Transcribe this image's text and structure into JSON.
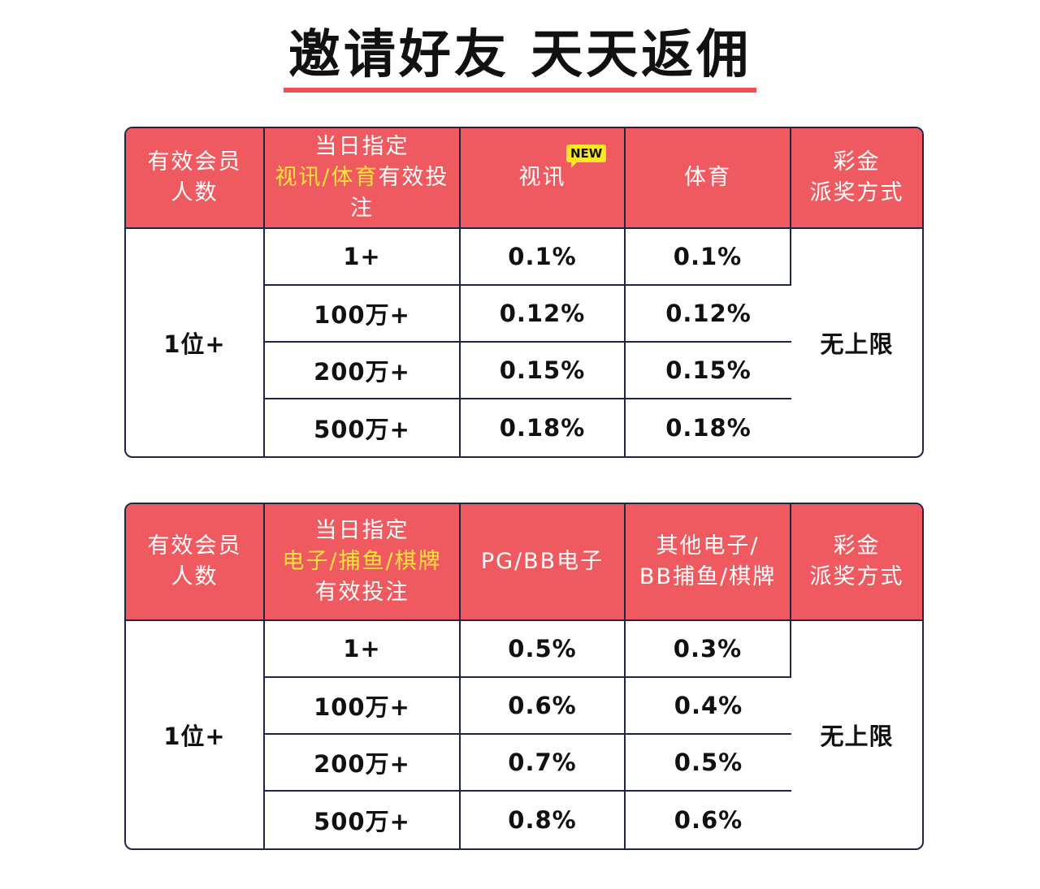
{
  "page": {
    "title": "邀请好友 天天返佣"
  },
  "table1": {
    "headers": {
      "members": [
        "有效会员",
        "人数"
      ],
      "bet_line1": "当日指定",
      "bet_line2_highlight": "视讯/体育",
      "bet_line2_rest": "有效投注",
      "col3": "视讯",
      "col3_badge": "NEW",
      "col4": "体育",
      "payout": [
        "彩金",
        "派奖方式"
      ]
    },
    "member_count": "1位+",
    "prize_limit": "无上限",
    "rows": [
      {
        "tier": "1+",
        "v1": "0.1%",
        "v2": "0.1%"
      },
      {
        "tier": "100万+",
        "v1": "0.12%",
        "v2": "0.12%"
      },
      {
        "tier": "200万+",
        "v1": "0.15%",
        "v2": "0.15%"
      },
      {
        "tier": "500万+",
        "v1": "0.18%",
        "v2": "0.18%"
      }
    ]
  },
  "table2": {
    "headers": {
      "members": [
        "有效会员",
        "人数"
      ],
      "bet_line1": "当日指定",
      "bet_line2_highlight": "电子/捕鱼/棋牌",
      "bet_line3": "有效投注",
      "col3": "PG/BB电子",
      "col4": [
        "其他电子/",
        "BB捕鱼/棋牌"
      ],
      "payout": [
        "彩金",
        "派奖方式"
      ]
    },
    "member_count": "1位+",
    "prize_limit": "无上限",
    "rows": [
      {
        "tier": "1+",
        "v1": "0.5%",
        "v2": "0.3%"
      },
      {
        "tier": "100万+",
        "v1": "0.6%",
        "v2": "0.4%"
      },
      {
        "tier": "200万+",
        "v1": "0.7%",
        "v2": "0.5%"
      },
      {
        "tier": "500万+",
        "v1": "0.8%",
        "v2": "0.6%"
      }
    ]
  },
  "colors": {
    "header_bg": "#ef5a60",
    "accent": "#ef4f55",
    "highlight": "#ffe33b",
    "border": "#1f2545",
    "badge": "#fbe727"
  }
}
